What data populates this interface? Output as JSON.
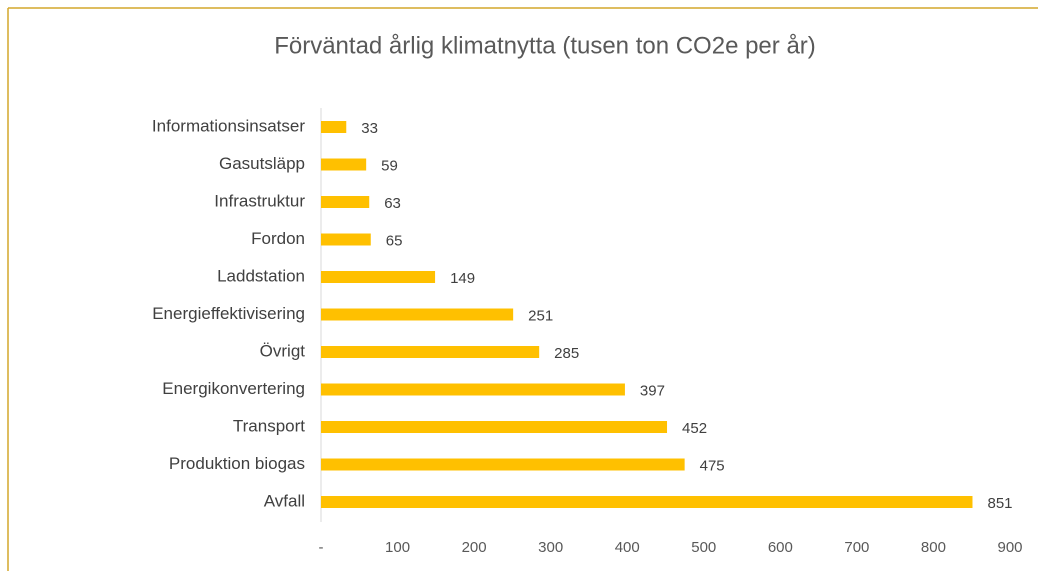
{
  "chart_data": {
    "type": "bar",
    "orientation": "horizontal",
    "title": "Förväntad årlig klimatnytta (tusen ton CO2e per år)",
    "categories": [
      "Informationsinsatser",
      "Gasutsläpp",
      "Infrastruktur",
      "Fordon",
      "Laddstation",
      "Energieffektivisering",
      "Övrigt",
      "Energikonvertering",
      "Transport",
      "Produktion biogas",
      "Avfall"
    ],
    "values": [
      33,
      59,
      63,
      65,
      149,
      251,
      285,
      397,
      452,
      475,
      851
    ],
    "color": "#ffc000",
    "xlim": [
      0,
      900
    ],
    "xticks": [
      {
        "value": 0,
        "label": "-"
      },
      100,
      200,
      300,
      400,
      500,
      600,
      700,
      800,
      900
    ],
    "grid": false
  }
}
